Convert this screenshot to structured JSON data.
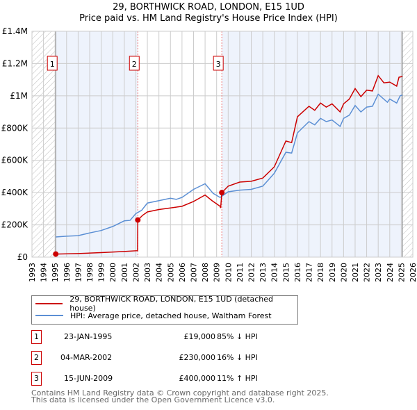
{
  "chart_data": {
    "type": "line",
    "title": "29, BORTHWICK ROAD, LONDON, E15 1UD",
    "subtitle": "Price paid vs. HM Land Registry's House Price Index (HPI)",
    "xlim": [
      1993,
      2026
    ],
    "ylim": [
      0,
      1400000
    ],
    "x_ticks": [
      "1993",
      "1994",
      "1995",
      "1996",
      "1997",
      "1998",
      "1999",
      "2000",
      "2001",
      "2002",
      "2003",
      "2004",
      "2005",
      "2006",
      "2007",
      "2008",
      "2009",
      "2010",
      "2011",
      "2012",
      "2013",
      "2014",
      "2015",
      "2016",
      "2017",
      "2018",
      "2019",
      "2020",
      "2021",
      "2022",
      "2023",
      "2024",
      "2025",
      "2026"
    ],
    "y_ticks": [
      {
        "v": 0,
        "label": "£0"
      },
      {
        "v": 200000,
        "label": "£200K"
      },
      {
        "v": 400000,
        "label": "£400K"
      },
      {
        "v": 600000,
        "label": "£600K"
      },
      {
        "v": 800000,
        "label": "£800K"
      },
      {
        "v": 1000000,
        "label": "£1M"
      },
      {
        "v": 1200000,
        "label": "£1.2M"
      },
      {
        "v": 1400000,
        "label": "£1.4M"
      }
    ],
    "grid": true,
    "series": [
      {
        "name": "29, BORTHWICK ROAD, LONDON, E15 1UD (detached house)",
        "color": "#cc0000",
        "x": [
          1995.06,
          1997,
          1999,
          2001,
          2002.15,
          2002.17,
          2002.6,
          2003,
          2004,
          2005,
          2006,
          2007,
          2008,
          2008.6,
          2009.3,
          2009.35,
          2009.45,
          2010,
          2011,
          2012,
          2013,
          2014,
          2015,
          2015.5,
          2016,
          2017,
          2017.5,
          2018,
          2018.5,
          2019,
          2019.7,
          2020,
          2020.5,
          2021,
          2021.5,
          2022,
          2022.5,
          2023,
          2023.5,
          2024,
          2024.6,
          2024.8,
          2025.1
        ],
        "y": [
          19000,
          22000,
          28000,
          35000,
          40000,
          230000,
          260000,
          280000,
          295000,
          305000,
          315000,
          345000,
          385000,
          350000,
          315000,
          305000,
          400000,
          440000,
          465000,
          470000,
          490000,
          560000,
          720000,
          710000,
          870000,
          935000,
          910000,
          955000,
          930000,
          950000,
          900000,
          950000,
          980000,
          1045000,
          995000,
          1035000,
          1030000,
          1125000,
          1080000,
          1085000,
          1060000,
          1115000,
          1120000
        ]
      },
      {
        "name": "HPI: Average price, detached house, Waltham Forest",
        "color": "#5b8fd4",
        "x": [
          1995.06,
          1996,
          1997,
          1998,
          1999,
          2000,
          2001,
          2001.5,
          2002,
          2002.5,
          2003,
          2004,
          2005,
          2005.5,
          2006,
          2007,
          2008,
          2008.7,
          2009.3,
          2010,
          2011,
          2012,
          2013,
          2014,
          2015,
          2015.5,
          2016,
          2017,
          2017.5,
          2018,
          2018.5,
          2019,
          2019.7,
          2020,
          2020.5,
          2021,
          2021.5,
          2022,
          2022.5,
          2023,
          2023.8,
          2024,
          2024.6,
          2024.9,
          2025.1
        ],
        "y": [
          125000,
          130000,
          133000,
          150000,
          165000,
          190000,
          225000,
          228000,
          270000,
          290000,
          335000,
          350000,
          365000,
          358000,
          370000,
          420000,
          455000,
          395000,
          370000,
          405000,
          415000,
          420000,
          440000,
          520000,
          650000,
          645000,
          770000,
          840000,
          820000,
          860000,
          840000,
          850000,
          810000,
          860000,
          880000,
          940000,
          900000,
          930000,
          935000,
          1010000,
          960000,
          980000,
          955000,
          1000000,
          1005000
        ]
      }
    ],
    "sales": [
      {
        "id": "1",
        "x": 1995.06,
        "y": 19000,
        "date": "23-JAN-1995",
        "price": "£19,000",
        "hpi": "85% ↓ HPI"
      },
      {
        "id": "2",
        "x": 2002.17,
        "y": 230000,
        "date": "04-MAR-2002",
        "price": "£230,000",
        "hpi": "16% ↓ HPI"
      },
      {
        "id": "3",
        "x": 2009.45,
        "y": 400000,
        "date": "15-JUN-2009",
        "price": "£400,000",
        "hpi": "11% ↑ HPI"
      }
    ],
    "data_end": 2025.1,
    "legend_position": "bottom"
  },
  "footer": {
    "line1": "Contains HM Land Registry data © Crown copyright and database right 2025.",
    "line2": "This data is licensed under the Open Government Licence v3.0."
  }
}
